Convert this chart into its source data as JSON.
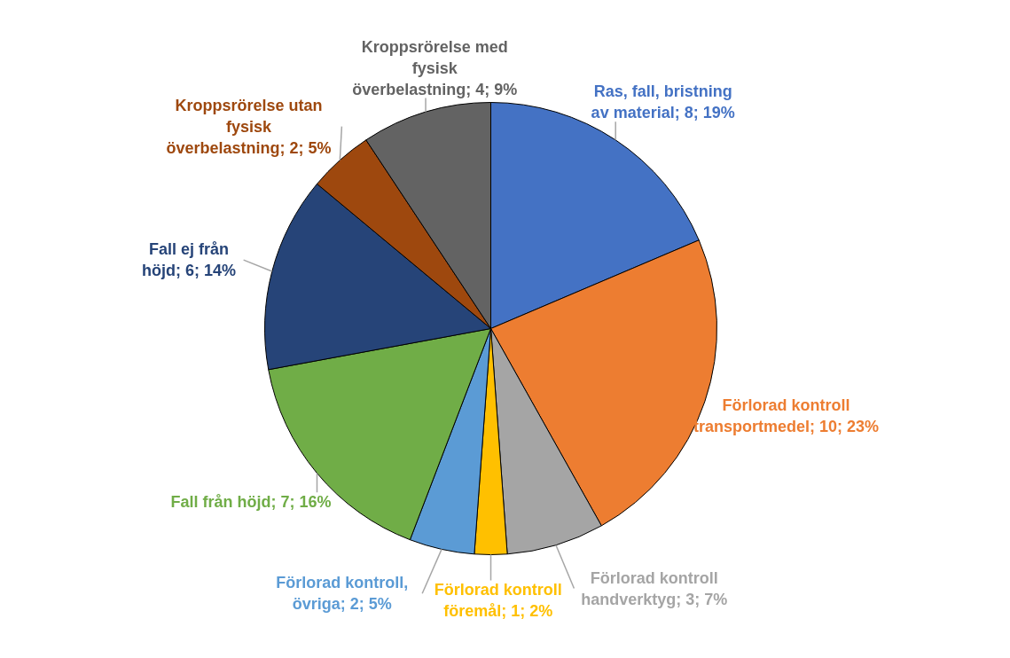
{
  "chart_data": {
    "type": "pie",
    "categories": [
      "Ras, fall, bristning av material",
      "Förlorad kontroll transportmedel",
      "Förlorad kontroll handverktyg",
      "Förlorad kontroll föremål",
      "Förlorad kontroll, övriga",
      "Fall från höjd",
      "Fall ej från höjd",
      "Kroppsrörelse utan fysisk överbelastning",
      "Kroppsrörelse med fysisk överbelastning"
    ],
    "values": [
      8,
      10,
      3,
      1,
      2,
      7,
      6,
      2,
      4
    ],
    "value_labels": [
      "8; 19%",
      "10; 23%",
      "3; 7%",
      "1; 2%",
      "2; 5%",
      "7; 16%",
      "6; 14%",
      "2; 5%",
      "4; 9%"
    ],
    "colors": [
      "#4472c4",
      "#ed7d31",
      "#a5a5a5",
      "#ffc000",
      "#5b9bd5",
      "#70ad47",
      "#264478",
      "#9e480e",
      "#636363"
    ]
  }
}
